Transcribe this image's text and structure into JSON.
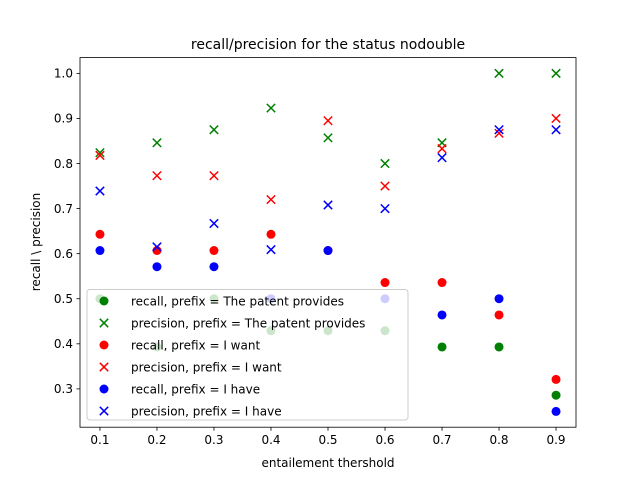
{
  "chart_data": {
    "type": "scatter",
    "title": "recall/precision for the status nodouble",
    "xlabel": "entailement thershold",
    "ylabel": "recall \\ precision",
    "xlim": [
      0.065,
      0.935
    ],
    "ylim": [
      0.215,
      1.035
    ],
    "xticks": [
      0.1,
      0.2,
      0.3,
      0.4,
      0.5,
      0.6,
      0.7,
      0.8,
      0.9
    ],
    "xtick_labels": [
      "0.1",
      "0.2",
      "0.3",
      "0.4",
      "0.5",
      "0.6",
      "0.7",
      "0.8",
      "0.9"
    ],
    "yticks": [
      0.3,
      0.4,
      0.5,
      0.6,
      0.7,
      0.8,
      0.9,
      1.0
    ],
    "ytick_labels": [
      "0.3",
      "0.4",
      "0.5",
      "0.6",
      "0.7",
      "0.8",
      "0.9",
      "1.0"
    ],
    "grid": false,
    "legend_position": "lower-left",
    "x": [
      0.1,
      0.2,
      0.3,
      0.4,
      0.5,
      0.6,
      0.7,
      0.8,
      0.9
    ],
    "series": [
      {
        "name": "recall, prefix = The patent provides",
        "marker": "circle",
        "color": "#008000",
        "values": [
          0.5,
          0.393,
          0.5,
          0.429,
          0.429,
          0.429,
          0.393,
          0.393,
          0.286
        ]
      },
      {
        "name": "precision, prefix = The patent provides",
        "marker": "x",
        "color": "#008000",
        "values": [
          0.824,
          0.846,
          0.875,
          0.923,
          0.857,
          0.8,
          0.846,
          1.0,
          1.0
        ]
      },
      {
        "name": "recall, prefix = I want",
        "marker": "circle",
        "color": "#ff0000",
        "values": [
          0.643,
          0.607,
          0.607,
          0.643,
          0.607,
          0.536,
          0.536,
          0.464,
          0.321
        ]
      },
      {
        "name": "precision, prefix = I want",
        "marker": "x",
        "color": "#ff0000",
        "values": [
          0.818,
          0.773,
          0.773,
          0.72,
          0.895,
          0.75,
          0.833,
          0.867,
          0.9
        ]
      },
      {
        "name": "recall, prefix = I have",
        "marker": "circle",
        "color": "#0000ff",
        "values": [
          0.607,
          0.571,
          0.571,
          0.5,
          0.607,
          0.5,
          0.464,
          0.5,
          0.25
        ]
      },
      {
        "name": "precision, prefix = I have",
        "marker": "x",
        "color": "#0000ff",
        "values": [
          0.739,
          0.615,
          0.667,
          0.609,
          0.708,
          0.7,
          0.813,
          0.875,
          0.875
        ]
      }
    ]
  }
}
